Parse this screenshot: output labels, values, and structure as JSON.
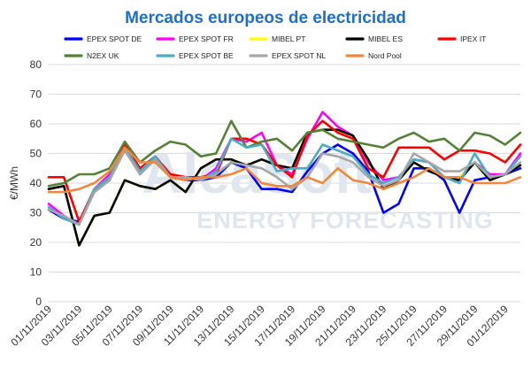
{
  "chart_data": {
    "type": "line",
    "title": "Mercados europeos de electricidad",
    "ylabel": "€/MWh",
    "xlabel": "",
    "ylim": [
      0,
      80
    ],
    "yticks": [
      0,
      10,
      20,
      30,
      40,
      50,
      60,
      70,
      80
    ],
    "grid": true,
    "legend_position": "top",
    "watermark": [
      "AleaSoft",
      "ENERGY FORECASTING"
    ],
    "x": [
      "01/11/2019",
      "02/11/2019",
      "03/11/2019",
      "04/11/2019",
      "05/11/2019",
      "06/11/2019",
      "07/11/2019",
      "08/11/2019",
      "09/11/2019",
      "10/11/2019",
      "11/11/2019",
      "12/11/2019",
      "13/11/2019",
      "14/11/2019",
      "15/11/2019",
      "16/11/2019",
      "17/11/2019",
      "18/11/2019",
      "19/11/2019",
      "20/11/2019",
      "21/11/2019",
      "22/11/2019",
      "23/11/2019",
      "24/11/2019",
      "25/11/2019",
      "26/11/2019",
      "27/11/2019",
      "28/11/2019",
      "29/11/2019",
      "30/11/2019",
      "01/12/2019",
      "02/12/2019"
    ],
    "xtick_labels": [
      "01/11/2019",
      "03/11/2019",
      "05/11/2019",
      "07/11/2019",
      "09/11/2019",
      "11/11/2019",
      "13/11/2019",
      "15/11/2019",
      "17/11/2019",
      "19/11/2019",
      "21/11/2019",
      "23/11/2019",
      "25/11/2019",
      "27/11/2019",
      "29/11/2019",
      "01/12/2019"
    ],
    "series": [
      {
        "name": "EPEX SPOT DE",
        "color": "#0000ff",
        "values": [
          31,
          28,
          27,
          37,
          41,
          52,
          43,
          48,
          42,
          41,
          41,
          42,
          47,
          45,
          38,
          38,
          37,
          44,
          50,
          53,
          50,
          44,
          30,
          33,
          45,
          45,
          41,
          30,
          41,
          42,
          43,
          45
        ]
      },
      {
        "name": "EPEX SPOT FR",
        "color": "#ff00ff",
        "values": [
          33,
          29,
          26,
          38,
          43,
          53,
          44,
          49,
          43,
          42,
          41,
          45,
          55,
          54,
          57,
          46,
          43,
          55,
          64,
          59,
          56,
          47,
          41,
          42,
          48,
          47,
          42,
          42,
          47,
          43,
          43,
          50
        ]
      },
      {
        "name": "MIBEL PT",
        "color": "#ffff00",
        "values": [
          38,
          39,
          19,
          29,
          30,
          41,
          39,
          38,
          41,
          37,
          45,
          48,
          48,
          46,
          48,
          46,
          45,
          57,
          58,
          58,
          56,
          48,
          38,
          41,
          47,
          44,
          42,
          42,
          47,
          41,
          43,
          46
        ]
      },
      {
        "name": "MIBEL ES",
        "color": "#000000",
        "values": [
          38,
          39,
          19,
          29,
          30,
          41,
          39,
          38,
          41,
          37,
          45,
          48,
          48,
          46,
          48,
          46,
          45,
          57,
          58,
          58,
          56,
          48,
          38,
          41,
          47,
          44,
          42,
          41,
          47,
          41,
          43,
          46
        ]
      },
      {
        "name": "IPEX IT",
        "color": "#ff0000",
        "values": [
          42,
          42,
          27,
          38,
          42,
          53,
          45,
          49,
          43,
          42,
          42,
          43,
          55,
          55,
          53,
          46,
          42,
          56,
          61,
          57,
          55,
          45,
          42,
          52,
          52,
          52,
          48,
          51,
          51,
          50,
          47,
          53
        ]
      },
      {
        "name": "N2EX UK",
        "color": "#548235",
        "values": [
          39,
          40,
          43,
          43,
          45,
          54,
          47,
          51,
          54,
          53,
          49,
          50,
          61,
          52,
          54,
          55,
          51,
          57,
          58,
          55,
          54,
          53,
          52,
          55,
          57,
          54,
          55,
          51,
          57,
          56,
          53,
          57
        ]
      },
      {
        "name": "EPEX SPOT BE",
        "color": "#4bacc6",
        "values": [
          32,
          28,
          26,
          38,
          42,
          52,
          44,
          49,
          42,
          42,
          41,
          44,
          55,
          52,
          53,
          44,
          45,
          45,
          53,
          51,
          49,
          43,
          40,
          42,
          48,
          47,
          42,
          40,
          50,
          42,
          43,
          49
        ]
      },
      {
        "name": "EPEX SPOT NL",
        "color": "#a6a6a6",
        "values": [
          31,
          29,
          26,
          37,
          41,
          51,
          43,
          48,
          42,
          42,
          41,
          43,
          47,
          46,
          45,
          42,
          38,
          42,
          50,
          49,
          47,
          42,
          39,
          41,
          50,
          47,
          44,
          44,
          47,
          42,
          43,
          47
        ]
      },
      {
        "name": "Nord Pool",
        "color": "#f2873a",
        "values": [
          37,
          37,
          38,
          40,
          44,
          52,
          47,
          47,
          42,
          41,
          42,
          42,
          43,
          45,
          40,
          39,
          39,
          42,
          40,
          45,
          41,
          40,
          38,
          40,
          42,
          45,
          42,
          42,
          40,
          40,
          40,
          42
        ]
      }
    ]
  }
}
